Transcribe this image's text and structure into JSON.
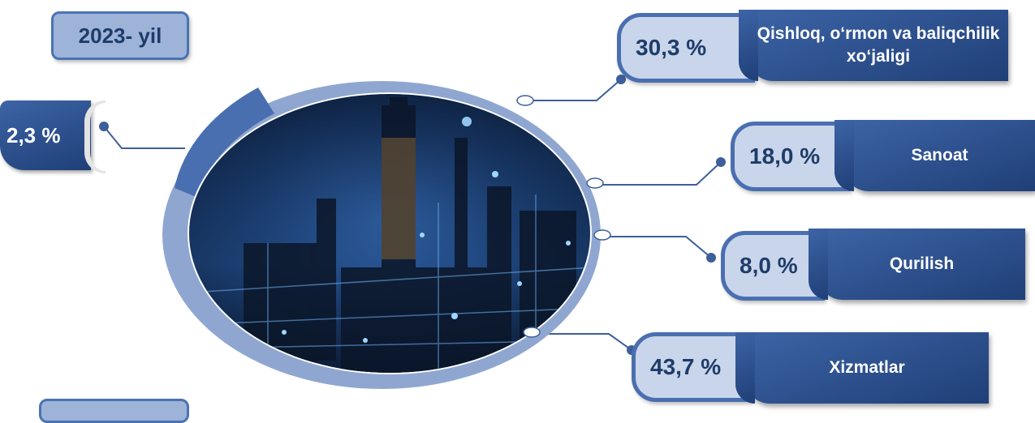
{
  "year": "2023- yil",
  "chart_data": {
    "type": "table",
    "series": [
      {
        "categories": [
          "Qishloq, o‘rmon va baliqchilik xo‘jaligi",
          "Sanoat",
          "Qurilish",
          "Xizmatlar",
          ""
        ],
        "values": [
          30.3,
          18.0,
          8.0,
          43.7,
          2.3
        ],
        "labels": [
          "30,3 %",
          "18,0 %",
          "8,0 %",
          "43,7 %",
          "2,3 %"
        ]
      }
    ]
  },
  "items": [
    {
      "pct": "30,3 %",
      "label": "Qishloq, o‘rmon va baliqchilik xo‘jaligi"
    },
    {
      "pct": "18,0 %",
      "label": "Sanoat"
    },
    {
      "pct": "8,0 %",
      "label": "Qurilish"
    },
    {
      "pct": "43,7 %",
      "label": "Xizmatlar"
    }
  ],
  "left_item": {
    "pct": "2,3 %"
  },
  "colors": {
    "navy": "#1f3f77",
    "ring": "#8fa7d0",
    "light": "#c9d5ea",
    "border": "#4a6fb0"
  },
  "image": "industrial-refinery-night"
}
